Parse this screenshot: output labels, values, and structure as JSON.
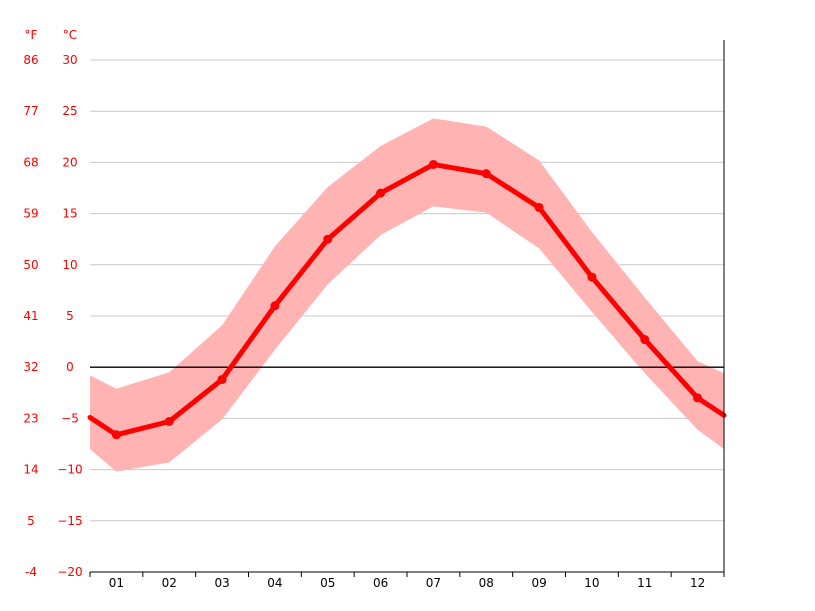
{
  "chart_data": {
    "type": "line",
    "unit_f_label": "°F",
    "unit_c_label": "°C",
    "categories": [
      "01",
      "02",
      "03",
      "04",
      "05",
      "06",
      "07",
      "08",
      "09",
      "10",
      "11",
      "12"
    ],
    "series": [
      {
        "values": [
          -6.6,
          -5.3,
          -1.2,
          6.0,
          12.5,
          17.0,
          19.8,
          18.9,
          15.6,
          8.8,
          2.7,
          -3.0
        ]
      }
    ],
    "range_band": {
      "upper": [
        -2.1,
        -0.5,
        4.1,
        11.8,
        17.6,
        21.6,
        24.3,
        23.5,
        20.2,
        13.2,
        6.8,
        0.6
      ],
      "lower": [
        -10.2,
        -9.3,
        -5.1,
        1.7,
        8.1,
        12.9,
        15.7,
        15.1,
        11.6,
        5.4,
        -0.6,
        -6.1
      ]
    },
    "left_edge_value": -4.9,
    "right_edge_value": -4.7,
    "left_edge_upper": -0.8,
    "left_edge_lower": -8.0,
    "right_edge_upper": -0.6,
    "right_edge_lower": -8.0,
    "ylim": [
      -20,
      30
    ],
    "celsius_ticks": [
      "30",
      "25",
      "20",
      "15",
      "10",
      "5",
      "0",
      "−5",
      "−10",
      "−15",
      "−20"
    ],
    "fahrenheit_ticks": [
      "86",
      "77",
      "68",
      "59",
      "50",
      "41",
      "32",
      "23",
      "14",
      "5",
      "-4"
    ],
    "grid": true,
    "colors": {
      "line": "#ff0000",
      "band": "#ffb3b3",
      "grid": "#c8c8c8",
      "zero": "#000000",
      "tick_text_left": "#ff0000"
    }
  }
}
